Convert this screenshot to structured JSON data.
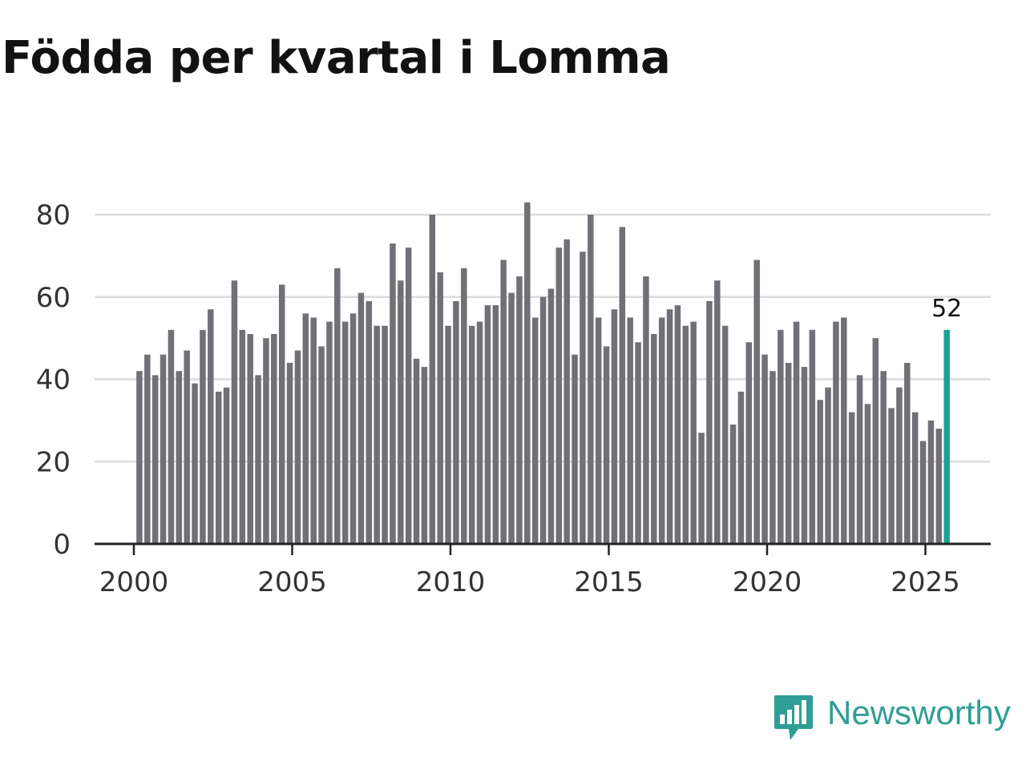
{
  "chart_data": {
    "type": "bar",
    "title": "Födda per kvartal i Lomma",
    "xlabel": "",
    "ylabel": "",
    "ylim": [
      0,
      80
    ],
    "yticks": [
      0,
      20,
      40,
      60,
      80
    ],
    "xticks": [
      2000,
      2005,
      2010,
      2015,
      2020,
      2025
    ],
    "grid": true,
    "start_year": 2000,
    "periods_per_year": 4,
    "values": [
      42,
      46,
      41,
      46,
      52,
      42,
      47,
      39,
      52,
      57,
      37,
      38,
      64,
      52,
      51,
      41,
      50,
      51,
      63,
      44,
      47,
      56,
      55,
      48,
      54,
      67,
      54,
      56,
      61,
      59,
      53,
      53,
      73,
      64,
      72,
      45,
      43,
      80,
      66,
      53,
      59,
      67,
      53,
      54,
      58,
      58,
      69,
      61,
      65,
      83,
      55,
      60,
      62,
      72,
      74,
      46,
      71,
      80,
      55,
      48,
      57,
      77,
      55,
      49,
      65,
      51,
      55,
      57,
      58,
      53,
      54,
      27,
      59,
      64,
      53,
      29,
      37,
      49,
      69,
      46,
      42,
      52,
      44,
      54,
      43,
      52,
      35,
      38,
      54,
      55,
      32,
      41,
      34,
      50,
      42,
      33,
      38,
      44,
      32,
      25,
      30,
      28,
      52
    ],
    "highlight_index": 102,
    "highlight_label": "52",
    "colors": {
      "bar": "#727076",
      "highlight": "#1aa395",
      "grid": "#dcdcdc",
      "axis": "#222222",
      "tick_text": "#333333"
    }
  },
  "brand": {
    "name": "Newsworthy",
    "color": "#2f9e96"
  }
}
